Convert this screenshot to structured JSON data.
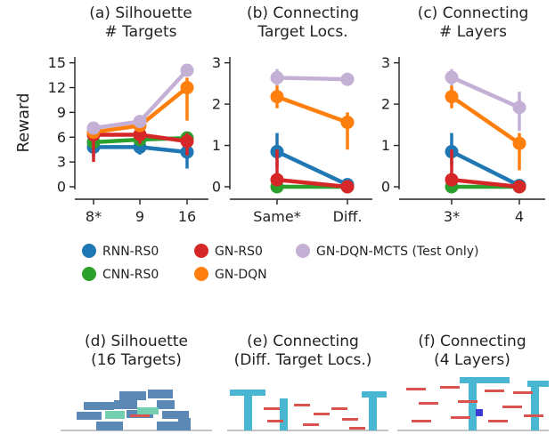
{
  "chart_data": [
    {
      "type": "line",
      "title": "(a) Silhouette\n# Targets",
      "ylabel": "Reward",
      "categories": [
        "8*",
        "9",
        "16"
      ],
      "ylim": [
        0,
        15.5
      ],
      "yticks": [
        0,
        3,
        6,
        9,
        12,
        15
      ],
      "series": [
        {
          "name": "RNN-RS0",
          "values": [
            4.8,
            4.8,
            4.2
          ],
          "err_low": [
            3.6,
            3.9,
            2.2
          ],
          "err_high": [
            5.8,
            5.6,
            5.6
          ]
        },
        {
          "name": "CNN-RS0",
          "values": [
            5.4,
            5.7,
            5.9
          ],
          "err_low": [
            4.9,
            5.3,
            5.3
          ],
          "err_high": [
            5.9,
            6.1,
            6.4
          ]
        },
        {
          "name": "GN-RS0",
          "values": [
            6.3,
            6.3,
            5.5
          ],
          "err_low": [
            3.0,
            5.2,
            3.8
          ],
          "err_high": [
            7.0,
            7.0,
            6.5
          ]
        },
        {
          "name": "GN-DQN",
          "values": [
            6.6,
            7.4,
            12.0
          ],
          "err_low": [
            6.0,
            7.0,
            8.0
          ],
          "err_high": [
            7.1,
            7.9,
            13.2
          ]
        },
        {
          "name": "GN-DQN-MCTS (Test Only)",
          "values": [
            7.1,
            7.9,
            14.1
          ],
          "err_low": [
            6.7,
            7.5,
            13.6
          ],
          "err_high": [
            7.5,
            8.3,
            14.5
          ]
        }
      ]
    },
    {
      "type": "line",
      "title": "(b) Connecting\nTarget Locs.",
      "categories": [
        "Same*",
        "Diff."
      ],
      "ylim": [
        0,
        3.1
      ],
      "yticks": [
        0,
        1,
        2,
        3
      ],
      "series": [
        {
          "name": "RNN-RS0",
          "values": [
            0.85,
            0.05
          ],
          "err_low": [
            0.5,
            0.02
          ],
          "err_high": [
            1.3,
            0.1
          ]
        },
        {
          "name": "CNN-RS0",
          "values": [
            0.0,
            0.0
          ],
          "err_low": [
            0.0,
            0.0
          ],
          "err_high": [
            0.02,
            0.02
          ]
        },
        {
          "name": "GN-RS0",
          "values": [
            0.17,
            0.0
          ],
          "err_low": [
            0.05,
            0.0
          ],
          "err_high": [
            0.9,
            0.02
          ]
        },
        {
          "name": "GN-DQN",
          "values": [
            2.18,
            1.56
          ],
          "err_low": [
            1.9,
            0.9
          ],
          "err_high": [
            2.45,
            1.8
          ]
        },
        {
          "name": "GN-DQN-MCTS (Test Only)",
          "values": [
            2.64,
            2.6
          ],
          "err_low": [
            2.45,
            2.45
          ],
          "err_high": [
            2.85,
            2.75
          ]
        }
      ]
    },
    {
      "type": "line",
      "title": "(c) Connecting\n# Layers",
      "categories": [
        "3*",
        "4"
      ],
      "ylim": [
        0,
        3.1
      ],
      "yticks": [
        0,
        1,
        2,
        3
      ],
      "series": [
        {
          "name": "RNN-RS0",
          "values": [
            0.85,
            0.03
          ],
          "err_low": [
            0.5,
            0.0
          ],
          "err_high": [
            1.3,
            0.08
          ]
        },
        {
          "name": "CNN-RS0",
          "values": [
            0.0,
            0.0
          ],
          "err_low": [
            0.0,
            0.0
          ],
          "err_high": [
            0.02,
            0.02
          ]
        },
        {
          "name": "GN-RS0",
          "values": [
            0.17,
            0.0
          ],
          "err_low": [
            0.05,
            0.0
          ],
          "err_high": [
            0.9,
            0.02
          ]
        },
        {
          "name": "GN-DQN",
          "values": [
            2.18,
            1.05
          ],
          "err_low": [
            1.9,
            0.4
          ],
          "err_high": [
            2.45,
            1.3
          ]
        },
        {
          "name": "GN-DQN-MCTS (Test Only)",
          "values": [
            2.65,
            1.92
          ],
          "err_low": [
            2.45,
            1.35
          ],
          "err_high": [
            2.85,
            2.3
          ]
        }
      ]
    }
  ],
  "series_colors": {
    "RNN-RS0": "#1f77b4",
    "CNN-RS0": "#2ca02c",
    "GN-RS0": "#d62728",
    "GN-DQN": "#ff7f0e",
    "GN-DQN-MCTS (Test Only)": "#c5b0d5"
  },
  "legend": {
    "row1": [
      "RNN-RS0",
      "GN-RS0",
      "GN-DQN-MCTS (Test Only)"
    ],
    "row2": [
      "CNN-RS0",
      "GN-DQN"
    ]
  },
  "subfigures": [
    {
      "title_line1": "(d) Silhouette",
      "title_line2": "(16 Targets)"
    },
    {
      "title_line1": "(e) Connecting",
      "title_line2": "(Diff. Target Locs.)"
    },
    {
      "title_line1": "(f) Connecting",
      "title_line2": "(4 Layers)"
    }
  ]
}
